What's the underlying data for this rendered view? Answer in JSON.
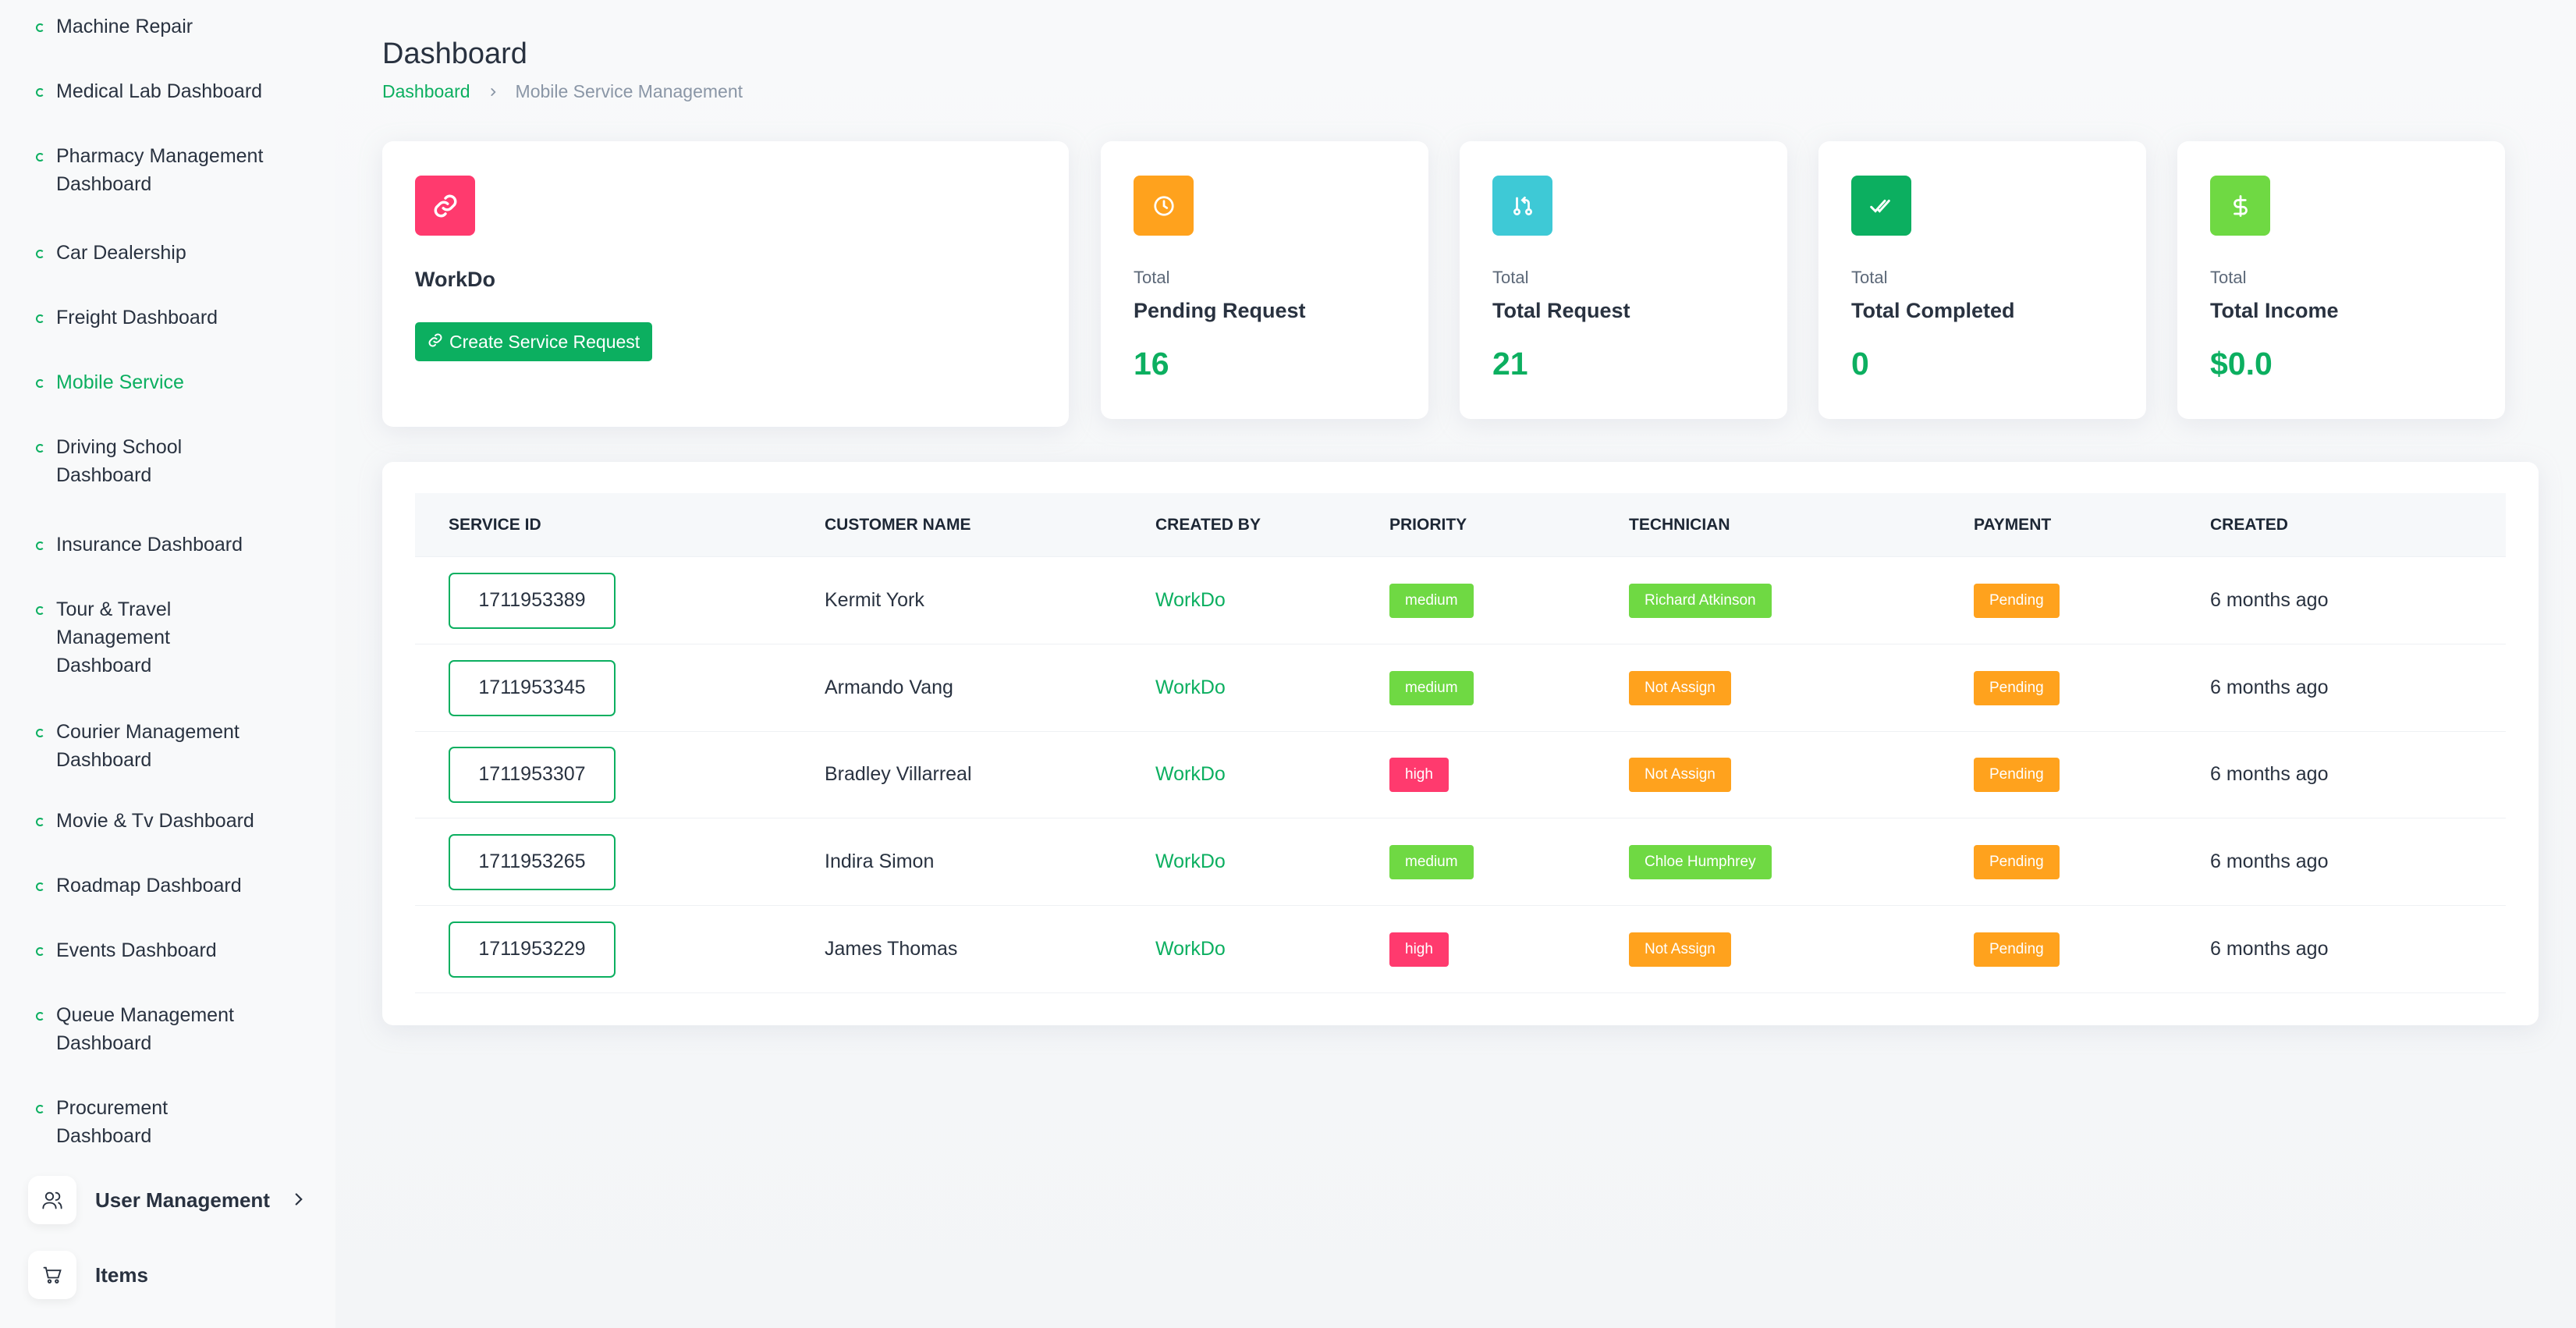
{
  "sidebar": {
    "items": [
      {
        "label": "Machine Repair",
        "lines": [
          "Machine Repair"
        ]
      },
      {
        "label": "Medical Lab Dashboard",
        "lines": [
          "Medical Lab Dashboard"
        ]
      },
      {
        "label": "Pharmacy Management Dashboard",
        "lines": [
          "Pharmacy Management",
          "Dashboard"
        ]
      },
      {
        "label": "Car Dealership",
        "lines": [
          "Car Dealership"
        ]
      },
      {
        "label": "Freight Dashboard",
        "lines": [
          "Freight Dashboard"
        ]
      },
      {
        "label": "Mobile Service",
        "lines": [
          "Mobile Service"
        ],
        "active": true
      },
      {
        "label": "Driving School Dashboard",
        "lines": [
          "Driving School",
          "Dashboard"
        ]
      },
      {
        "label": "Insurance Dashboard",
        "lines": [
          "Insurance Dashboard"
        ]
      },
      {
        "label": "Tour & Travel Management Dashboard",
        "lines": [
          "Tour & Travel",
          "Management",
          "Dashboard"
        ]
      },
      {
        "label": "Courier Management Dashboard",
        "lines": [
          "Courier Management",
          "Dashboard"
        ]
      },
      {
        "label": "Movie & Tv Dashboard",
        "lines": [
          "Movie & Tv Dashboard"
        ]
      },
      {
        "label": "Roadmap Dashboard",
        "lines": [
          "Roadmap Dashboard"
        ]
      },
      {
        "label": "Events Dashboard",
        "lines": [
          "Events Dashboard"
        ]
      },
      {
        "label": "Queue Management Dashboard",
        "lines": [
          "Queue Management",
          "Dashboard"
        ]
      },
      {
        "label": "Procurement Dashboard",
        "lines": [
          "Procurement",
          "Dashboard"
        ]
      }
    ],
    "user_management": {
      "label": "User Management",
      "icon": "users-icon"
    },
    "items_menu": {
      "label": "Items",
      "icon": "cart-icon"
    }
  },
  "header": {
    "title": "Dashboard",
    "breadcrumb": {
      "home": "Dashboard",
      "current": "Mobile Service Management"
    }
  },
  "workdo_card": {
    "name": "WorkDo",
    "button_label": "Create Service Request",
    "icon": "link-icon",
    "icon_color": "#ff3a6e"
  },
  "stats": [
    {
      "small": "Total",
      "label": "Pending Request",
      "value": "16",
      "icon": "clock-icon",
      "color": "#ffa21d"
    },
    {
      "small": "Total",
      "label": "Total Request",
      "value": "21",
      "icon": "git-pull-icon",
      "color": "#3ec9d6"
    },
    {
      "small": "Total",
      "label": "Total Completed",
      "value": "0",
      "icon": "double-check-icon",
      "color": "#0caf60"
    },
    {
      "small": "Total",
      "label": "Total Income",
      "value": "$0.0",
      "icon": "dollar-icon",
      "color": "#6fd943"
    }
  ],
  "table": {
    "headers": [
      "SERVICE ID",
      "CUSTOMER NAME",
      "CREATED BY",
      "PRIORITY",
      "TECHNICIAN",
      "PAYMENT",
      "CREATED"
    ],
    "rows": [
      {
        "id": "1711953389",
        "customer": "Kermit York",
        "created_by": "WorkDo",
        "priority": "medium",
        "technician": "Richard Atkinson",
        "payment": "Pending",
        "created": "6 months ago"
      },
      {
        "id": "1711953345",
        "customer": "Armando Vang",
        "created_by": "WorkDo",
        "priority": "medium",
        "technician": "Not Assign",
        "payment": "Pending",
        "created": "6 months ago"
      },
      {
        "id": "1711953307",
        "customer": "Bradley Villarreal",
        "created_by": "WorkDo",
        "priority": "high",
        "technician": "Not Assign",
        "payment": "Pending",
        "created": "6 months ago"
      },
      {
        "id": "1711953265",
        "customer": "Indira Simon",
        "created_by": "WorkDo",
        "priority": "medium",
        "technician": "Chloe Humphrey",
        "payment": "Pending",
        "created": "6 months ago"
      },
      {
        "id": "1711953229",
        "customer": "James Thomas",
        "created_by": "WorkDo",
        "priority": "high",
        "technician": "Not Assign",
        "payment": "Pending",
        "created": "6 months ago"
      }
    ]
  },
  "colors": {
    "primary": "#0caf60",
    "medium": "#6fd943",
    "high": "#ff3a6e",
    "warning": "#ffa21d"
  }
}
